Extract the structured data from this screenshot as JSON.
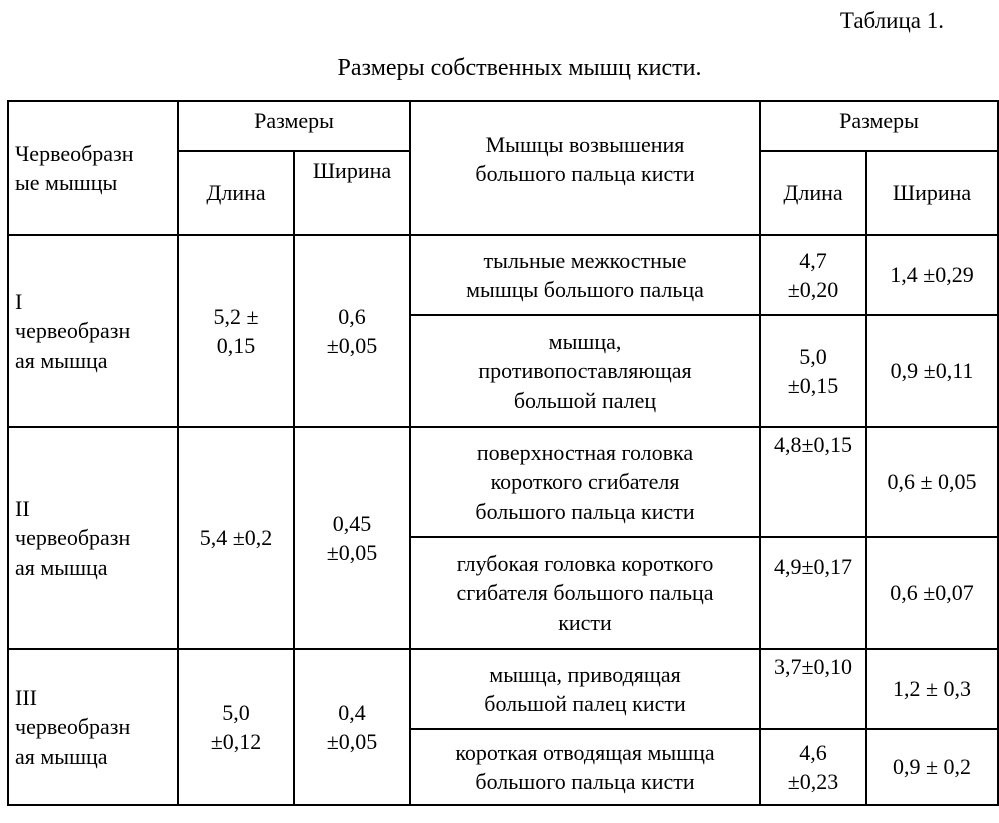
{
  "table_number": "Таблица 1.",
  "caption": "Размеры собственных мышц кисти.",
  "header": {
    "worm_muscles": "Червеобразн\nые мышцы",
    "sizes_left": "Размеры",
    "length_left": "Длина",
    "width_left": "Ширина",
    "thenar_muscles": "Мышцы возвышения\nбольшого пальца кисти",
    "sizes_right": "Размеры",
    "length_right": "Длина",
    "width_right": "Ширина"
  },
  "groups": [
    {
      "name": "I\nчервеобразн\nая мышца",
      "length": "5,2 ±\n0,15",
      "width": "0,6\n±0,05",
      "rows": [
        {
          "muscle": "тыльные межкостные\nмышцы большого пальца",
          "length": "4,7\n±0,20",
          "width": "1,4 ±0,29"
        },
        {
          "muscle": "мышца,\nпротивопоставляющая\nбольшой палец",
          "length": "5,0\n±0,15",
          "width": "0,9 ±0,11"
        }
      ]
    },
    {
      "name": "II\nчервеобразн\nая мышца",
      "length": "5,4 ±0,2",
      "width": "0,45\n±0,05",
      "rows": [
        {
          "muscle": "поверхностная головка\nкороткого сгибателя\nбольшого пальца кисти",
          "length": "4,8±0,15",
          "width": "0,6 ± 0,05"
        },
        {
          "muscle": "глубокая головка короткого\nсгибателя большого пальца\nкисти",
          "length": "4,9±0,17",
          "width": "0,6 ±0,07"
        }
      ]
    },
    {
      "name": "III\nчервеобразн\nая мышца",
      "length": "5,0\n±0,12",
      "width": "0,4\n±0,05",
      "rows": [
        {
          "muscle": "мышца, приводящая\nбольшой палец кисти",
          "length": "3,7±0,10",
          "width": "1,2 ± 0,3"
        },
        {
          "muscle": "короткая отводящая мышца\nбольшого пальца кисти",
          "length": "4,6\n±0,23",
          "width": "0,9 ± 0,2"
        }
      ]
    }
  ]
}
